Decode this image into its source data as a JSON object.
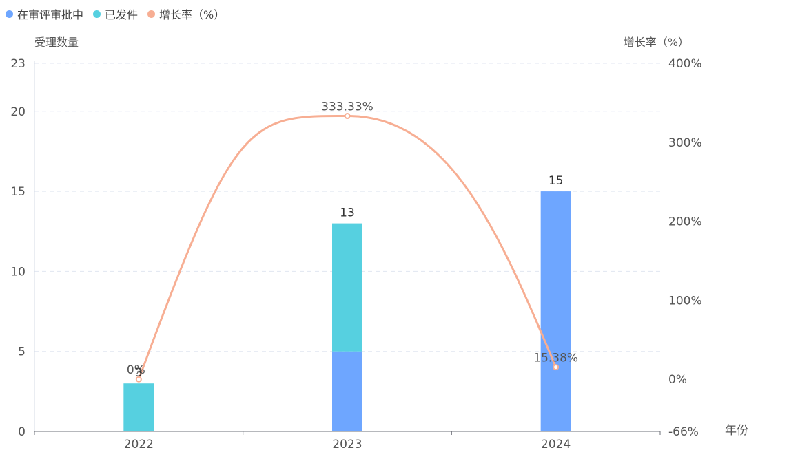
{
  "chart_data": {
    "type": "bar",
    "stacked": true,
    "categories": [
      "2022",
      "2023",
      "2024"
    ],
    "series": [
      {
        "name": "在审评审批中",
        "type": "bar",
        "axis": "left",
        "color": "#6ea6ff",
        "values": [
          0,
          5,
          15
        ]
      },
      {
        "name": "已发件",
        "type": "bar",
        "axis": "left",
        "color": "#56d0e0",
        "values": [
          3,
          8,
          0
        ]
      },
      {
        "name": "增长率（%）",
        "type": "line",
        "axis": "right",
        "color": "#f7ae93",
        "values": [
          0,
          333.33,
          15.38
        ]
      }
    ],
    "bar_totals": [
      "3",
      "13",
      "15"
    ],
    "line_labels": [
      "0%",
      "333.33%",
      "15.38%"
    ],
    "ylabel_left": "受理数量",
    "ylabel_right": "增长率（%）",
    "xlabel": "年份",
    "ylim_left": [
      0,
      23
    ],
    "ylim_right": [
      -66,
      400
    ],
    "yticks_left": [
      "0",
      "5",
      "10",
      "15",
      "20",
      "23"
    ],
    "yticks_right": [
      "-66%",
      "0%",
      "100%",
      "200%",
      "300%",
      "400%"
    ],
    "grid": true,
    "legend_position": "top-left"
  }
}
